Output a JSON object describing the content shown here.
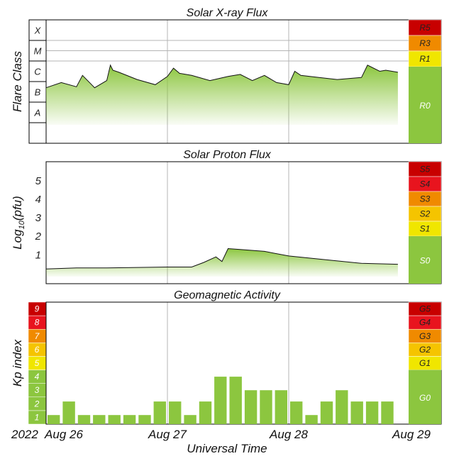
{
  "colors": {
    "green": "#8cc63f",
    "yellow": "#f0e600",
    "gold": "#f5c400",
    "orange": "#f08a00",
    "red_orange": "#f05000",
    "red": "#e8141e",
    "dark_red": "#c80000",
    "grid": "#b4b4b4",
    "frame": "#000000"
  },
  "x_axis": {
    "label": "Universal Time",
    "year_label": "2022",
    "day_labels": [
      "Aug 26",
      "Aug 27",
      "Aug 28",
      "Aug 29"
    ]
  },
  "chart_data": [
    {
      "type": "area",
      "title": "Solar X-ray Flux",
      "ylabel": "Flare Class",
      "flare_classes": [
        "X",
        "M",
        "C",
        "B",
        "A"
      ],
      "scale": [
        {
          "label": "R5",
          "color": "#c80000"
        },
        {
          "label": "R3",
          "color": "#f08a00"
        },
        {
          "label": "R1",
          "color": "#f0e600"
        },
        {
          "label": "R0",
          "color": "#8cc63f"
        }
      ],
      "x_days": [
        0,
        0.125,
        0.25,
        0.3,
        0.4,
        0.5,
        0.53,
        0.55,
        0.6,
        0.75,
        0.9,
        1.0,
        1.05,
        1.1,
        1.2,
        1.35,
        1.5,
        1.6,
        1.7,
        1.8,
        1.9,
        2.0,
        2.05,
        2.1,
        2.25,
        2.4,
        2.6,
        2.65,
        2.75,
        2.8,
        2.9
      ],
      "values_log_flux": [
        -6.3,
        -6.05,
        -6.25,
        -5.7,
        -6.3,
        -5.95,
        -5.2,
        -5.45,
        -5.55,
        -5.9,
        -6.15,
        -5.75,
        -5.35,
        -5.6,
        -5.7,
        -5.95,
        -5.75,
        -5.65,
        -5.95,
        -5.7,
        -6.05,
        -6.15,
        -5.5,
        -5.7,
        -5.8,
        -5.9,
        -5.8,
        -5.2,
        -5.5,
        -5.45,
        -5.55
      ],
      "yclass_range_log": [
        -9,
        -3
      ]
    },
    {
      "type": "area",
      "title": "Solar Proton Flux",
      "ylabel": "Log10(pfu)",
      "ylabel_main": "Log",
      "ylabel_sub": "10",
      "ylabel_unit": "(pfu)",
      "yticks": [
        "1",
        "2",
        "3",
        "4",
        "5"
      ],
      "ylim": [
        -0.6,
        6
      ],
      "scale": [
        {
          "label": "S5",
          "color": "#c80000"
        },
        {
          "label": "S4",
          "color": "#e8141e"
        },
        {
          "label": "S3",
          "color": "#f08a00"
        },
        {
          "label": "S2",
          "color": "#f5c400"
        },
        {
          "label": "S1",
          "color": "#f0e600"
        },
        {
          "label": "S0",
          "color": "#8cc63f"
        }
      ],
      "x_days": [
        0,
        0.25,
        0.5,
        0.75,
        1.0,
        1.2,
        1.3,
        1.4,
        1.45,
        1.5,
        1.6,
        1.8,
        2.0,
        2.3,
        2.6,
        2.9
      ],
      "values_log_pfu": [
        0.2,
        0.25,
        0.25,
        0.28,
        0.3,
        0.3,
        0.55,
        0.85,
        0.6,
        1.3,
        1.25,
        1.15,
        0.9,
        0.7,
        0.5,
        0.45
      ]
    },
    {
      "type": "bar",
      "title": "Geomagnetic Activity",
      "ylabel": "Kp index",
      "yticks": [
        "1",
        "2",
        "3",
        "4",
        "5",
        "6",
        "7",
        "8",
        "9"
      ],
      "ylim": [
        0,
        9
      ],
      "scale": [
        {
          "label": "G5",
          "color": "#c80000"
        },
        {
          "label": "G4",
          "color": "#e8141e"
        },
        {
          "label": "G3",
          "color": "#f08a00"
        },
        {
          "label": "G2",
          "color": "#f5c400"
        },
        {
          "label": "G1",
          "color": "#f0e600"
        },
        {
          "label": "G0",
          "color": "#8cc63f"
        }
      ],
      "bar_interval_hours": 3,
      "values": [
        0.67,
        1.67,
        0.67,
        0.67,
        0.67,
        0.67,
        0.67,
        1.67,
        1.67,
        0.67,
        1.67,
        3.5,
        3.5,
        2.5,
        2.5,
        2.5,
        1.67,
        0.67,
        1.67,
        2.5,
        1.67,
        1.67,
        1.67
      ]
    }
  ]
}
